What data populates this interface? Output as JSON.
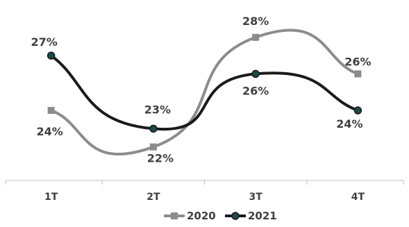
{
  "chart_data": {
    "type": "line",
    "title": "",
    "xlabel": "",
    "ylabel": "",
    "categories": [
      "1T",
      "2T",
      "3T",
      "4T"
    ],
    "series": [
      {
        "name": "2020",
        "values": [
          24,
          22,
          28,
          26
        ],
        "labels": [
          "24%",
          "22%",
          "28%",
          "26%"
        ],
        "color": "#8c8c8c",
        "marker": "square"
      },
      {
        "name": "2021",
        "values": [
          27,
          23,
          26,
          24
        ],
        "labels": [
          "27%",
          "23%",
          "26%",
          "24%"
        ],
        "color": "#1a1a1a",
        "marker": "circle",
        "marker_fill": "#1b4a4a"
      }
    ],
    "smooth": true,
    "grid": false,
    "y_axis_visible": false,
    "legend_position": "bottom-center"
  }
}
